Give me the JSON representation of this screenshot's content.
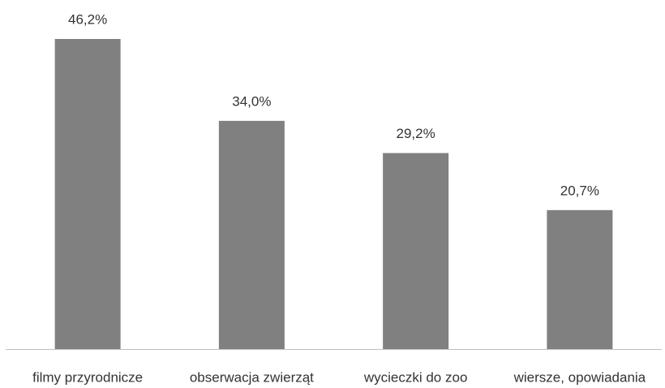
{
  "chart_data": {
    "type": "bar",
    "categories": [
      "filmy przyrodnicze",
      "obserwacja zwierząt",
      "wycieczki do zoo",
      "wiersze, opowiadania"
    ],
    "values": [
      46.2,
      34.0,
      29.2,
      20.7
    ],
    "value_labels": [
      "46,2%",
      "34,0%",
      "29,2%",
      "20,7%"
    ],
    "color": "#808080"
  }
}
